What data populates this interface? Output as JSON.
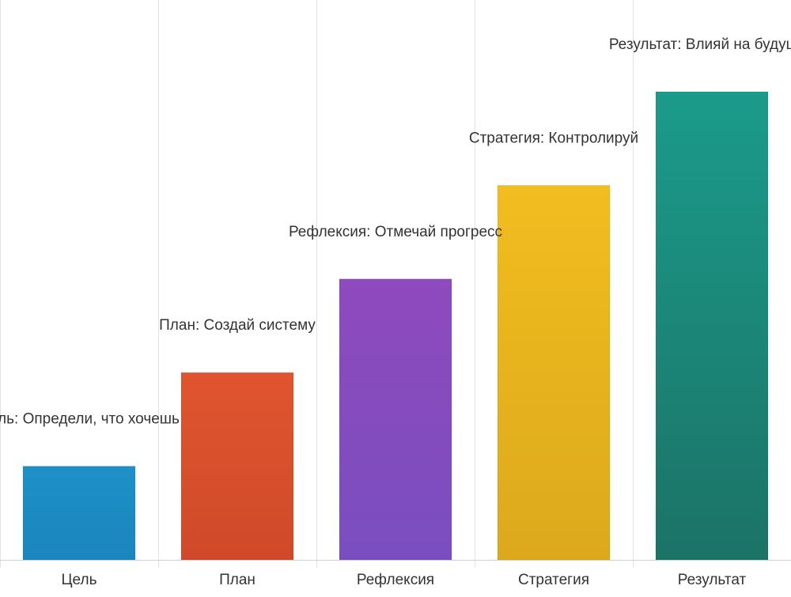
{
  "chart_data": {
    "type": "bar",
    "categories": [
      "Цель",
      "План",
      "Рефлексия",
      "Стратегия",
      "Результат"
    ],
    "values": [
      1,
      2,
      3,
      4,
      5
    ],
    "data_labels": [
      "Цель: Определи, что хочешь",
      "План: Создай систему",
      "Рефлексия: Отмечай прогресс",
      "Стратегия: Контролируй",
      "Результат: Влияй на будущее"
    ],
    "colors": [
      [
        "#1e90c8",
        "#1a86bd"
      ],
      [
        "#e0552f",
        "#cf4a2a"
      ],
      [
        "#8e4abe",
        "#7a4ebf"
      ],
      [
        "#f1bd1f",
        "#dca91d"
      ],
      [
        "#1b9b8b",
        "#1b7366"
      ]
    ],
    "ylim": [
      0,
      5.98
    ],
    "grid": true,
    "title": "",
    "xlabel": "",
    "ylabel": ""
  }
}
